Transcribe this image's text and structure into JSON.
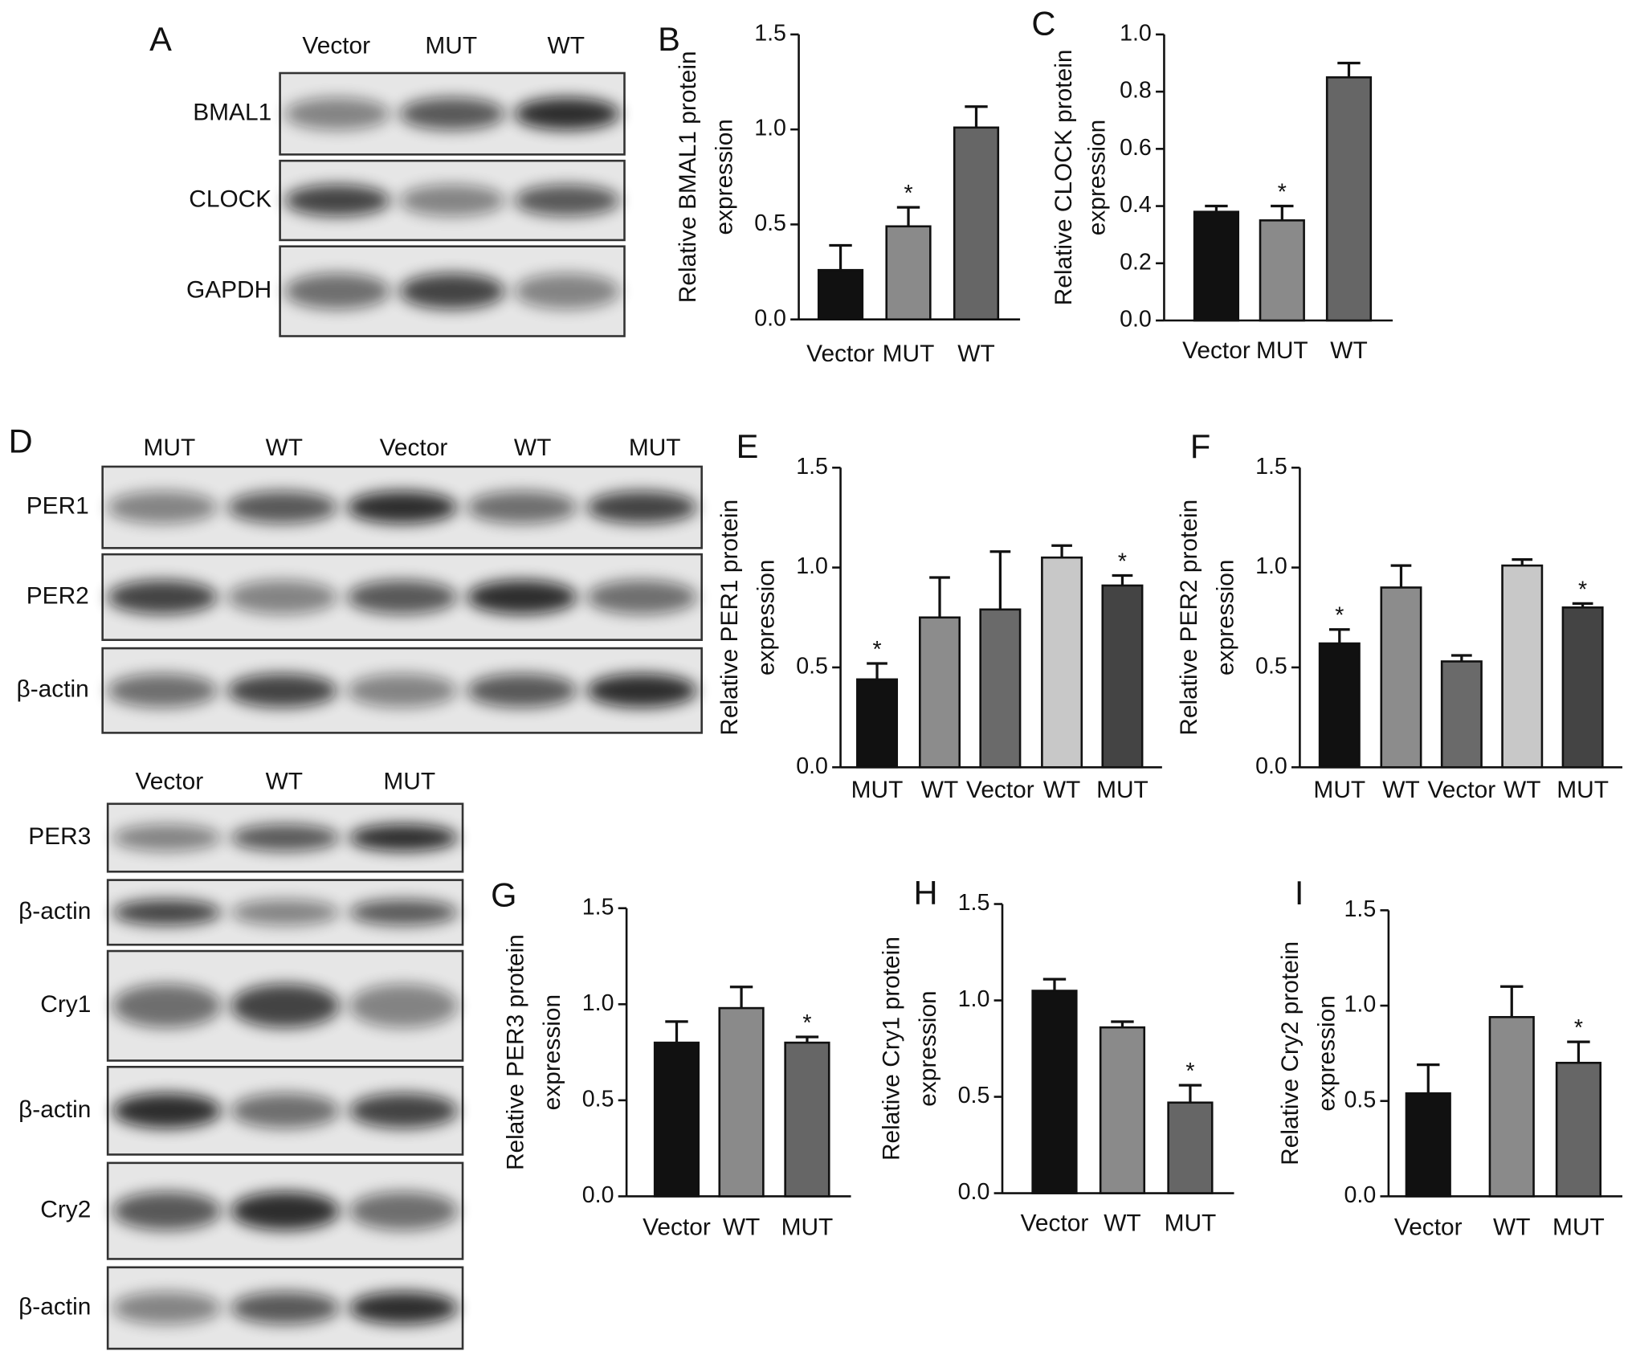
{
  "blots": [
    {
      "panel": "A",
      "lanes": [
        "Vector",
        "MUT",
        "WT"
      ],
      "rows": [
        "BMAL1",
        "CLOCK",
        "GAPDH"
      ]
    },
    {
      "panel": "D",
      "lanes": [
        "MUT",
        "WT",
        "Vector",
        "WT",
        "MUT"
      ],
      "rows": [
        "PER1",
        "PER2",
        "β-actin"
      ]
    },
    {
      "lanes": [
        "Vector",
        "WT",
        "MUT"
      ],
      "rows": [
        "PER3",
        "β-actin",
        "Cry1",
        "β-actin",
        "Cry2",
        "β-actin"
      ]
    }
  ],
  "chart_data": [
    {
      "type": "bar",
      "panel": "B",
      "ylabel": [
        "Relative BMAL1 protein",
        "expression"
      ],
      "categories": [
        "Vector",
        "MUT",
        "WT"
      ],
      "values": [
        0.26,
        0.49,
        1.01
      ],
      "errors": [
        0.13,
        0.1,
        0.11
      ],
      "significance": [
        null,
        "*",
        null
      ],
      "colors": [
        "#111111",
        "#8a8a8a",
        "#666666"
      ],
      "ylim": [
        0,
        1.5
      ],
      "yticks": [
        {
          "value": 0,
          "label": "0.0"
        },
        0.5,
        {
          "value": 1,
          "label": "1.0"
        },
        1.5
      ]
    },
    {
      "type": "bar",
      "panel": "C",
      "ylabel": [
        "Relative CLOCK protein",
        "expression"
      ],
      "categories": [
        "Vector",
        "MUT",
        "WT"
      ],
      "values": [
        0.38,
        0.35,
        0.85
      ],
      "errors": [
        0.02,
        0.05,
        0.05
      ],
      "significance": [
        null,
        "*",
        null
      ],
      "colors": [
        "#111111",
        "#8a8a8a",
        "#666666"
      ],
      "ylim": [
        0,
        1
      ],
      "yticks": [
        {
          "value": 0,
          "label": "0.0"
        },
        0.2,
        0.4,
        0.6,
        0.8,
        {
          "value": 1,
          "label": "1.0"
        }
      ]
    },
    {
      "type": "bar",
      "panel": "E",
      "ylabel": [
        "Relative PER1 protein",
        "expression"
      ],
      "categories": [
        "MUT",
        "WT",
        "Vector",
        "WT",
        "MUT"
      ],
      "values": [
        0.44,
        0.75,
        0.79,
        1.05,
        0.91
      ],
      "errors": [
        0.08,
        0.2,
        0.29,
        0.06,
        0.05
      ],
      "significance": [
        "*",
        null,
        null,
        null,
        "*"
      ],
      "colors": [
        "#111111",
        "#8c8c8c",
        "#6a6a6a",
        "#c8c8c8",
        "#444444"
      ],
      "ylim": [
        0,
        1.5
      ],
      "yticks": [
        {
          "value": 0,
          "label": "0.0"
        },
        0.5,
        {
          "value": 1,
          "label": "1.0"
        },
        1.5
      ]
    },
    {
      "type": "bar",
      "panel": "F",
      "ylabel": [
        "Relative PER2 protein",
        "expression"
      ],
      "categories": [
        "MUT",
        "WT",
        "Vector",
        "WT",
        "MUT"
      ],
      "values": [
        0.62,
        0.9,
        0.53,
        1.01,
        0.8
      ],
      "errors": [
        0.07,
        0.11,
        0.03,
        0.03,
        0.02
      ],
      "significance": [
        "*",
        null,
        null,
        null,
        "*"
      ],
      "colors": [
        "#111111",
        "#8c8c8c",
        "#6a6a6a",
        "#c8c8c8",
        "#444444"
      ],
      "ylim": [
        0,
        1.5
      ],
      "yticks": [
        {
          "value": 0,
          "label": "0.0"
        },
        0.5,
        {
          "value": 1,
          "label": "1.0"
        },
        1.5
      ]
    },
    {
      "type": "bar",
      "panel": "G",
      "ylabel": [
        "Relative PER3 protein",
        "expression"
      ],
      "categories": [
        "Vector",
        "WT",
        "MUT"
      ],
      "values": [
        0.8,
        0.98,
        0.8
      ],
      "errors": [
        0.11,
        0.11,
        0.03
      ],
      "significance": [
        null,
        null,
        "*"
      ],
      "colors": [
        "#111111",
        "#8a8a8a",
        "#666666"
      ],
      "ylim": [
        0,
        1.5
      ],
      "yticks": [
        {
          "value": 0,
          "label": "0.0"
        },
        0.5,
        {
          "value": 1,
          "label": "1.0"
        },
        1.5
      ]
    },
    {
      "type": "bar",
      "panel": "H",
      "ylabel": [
        "Relative Cry1 protein",
        "expression"
      ],
      "categories": [
        "Vector",
        "WT",
        "MUT"
      ],
      "values": [
        1.05,
        0.86,
        0.47
      ],
      "errors": [
        0.06,
        0.03,
        0.09
      ],
      "significance": [
        null,
        null,
        "*"
      ],
      "colors": [
        "#111111",
        "#8a8a8a",
        "#666666"
      ],
      "ylim": [
        0,
        1.5
      ],
      "yticks": [
        {
          "value": 0,
          "label": "0.0"
        },
        0.5,
        {
          "value": 1,
          "label": "1.0"
        },
        1.5
      ]
    },
    {
      "type": "bar",
      "panel": "I",
      "ylabel": [
        "Relative Cry2 protein",
        "expression"
      ],
      "categories": [
        "Vector",
        "WT",
        "MUT"
      ],
      "values": [
        0.54,
        0.94,
        0.7
      ],
      "errors": [
        0.15,
        0.16,
        0.11
      ],
      "significance": [
        null,
        null,
        "*"
      ],
      "colors": [
        "#111111",
        "#8a8a8a",
        "#666666"
      ],
      "ylim": [
        0,
        1.5
      ],
      "yticks": [
        {
          "value": 0,
          "label": "0.0"
        },
        0.5,
        {
          "value": 1,
          "label": "1.0"
        },
        1.5
      ]
    }
  ]
}
